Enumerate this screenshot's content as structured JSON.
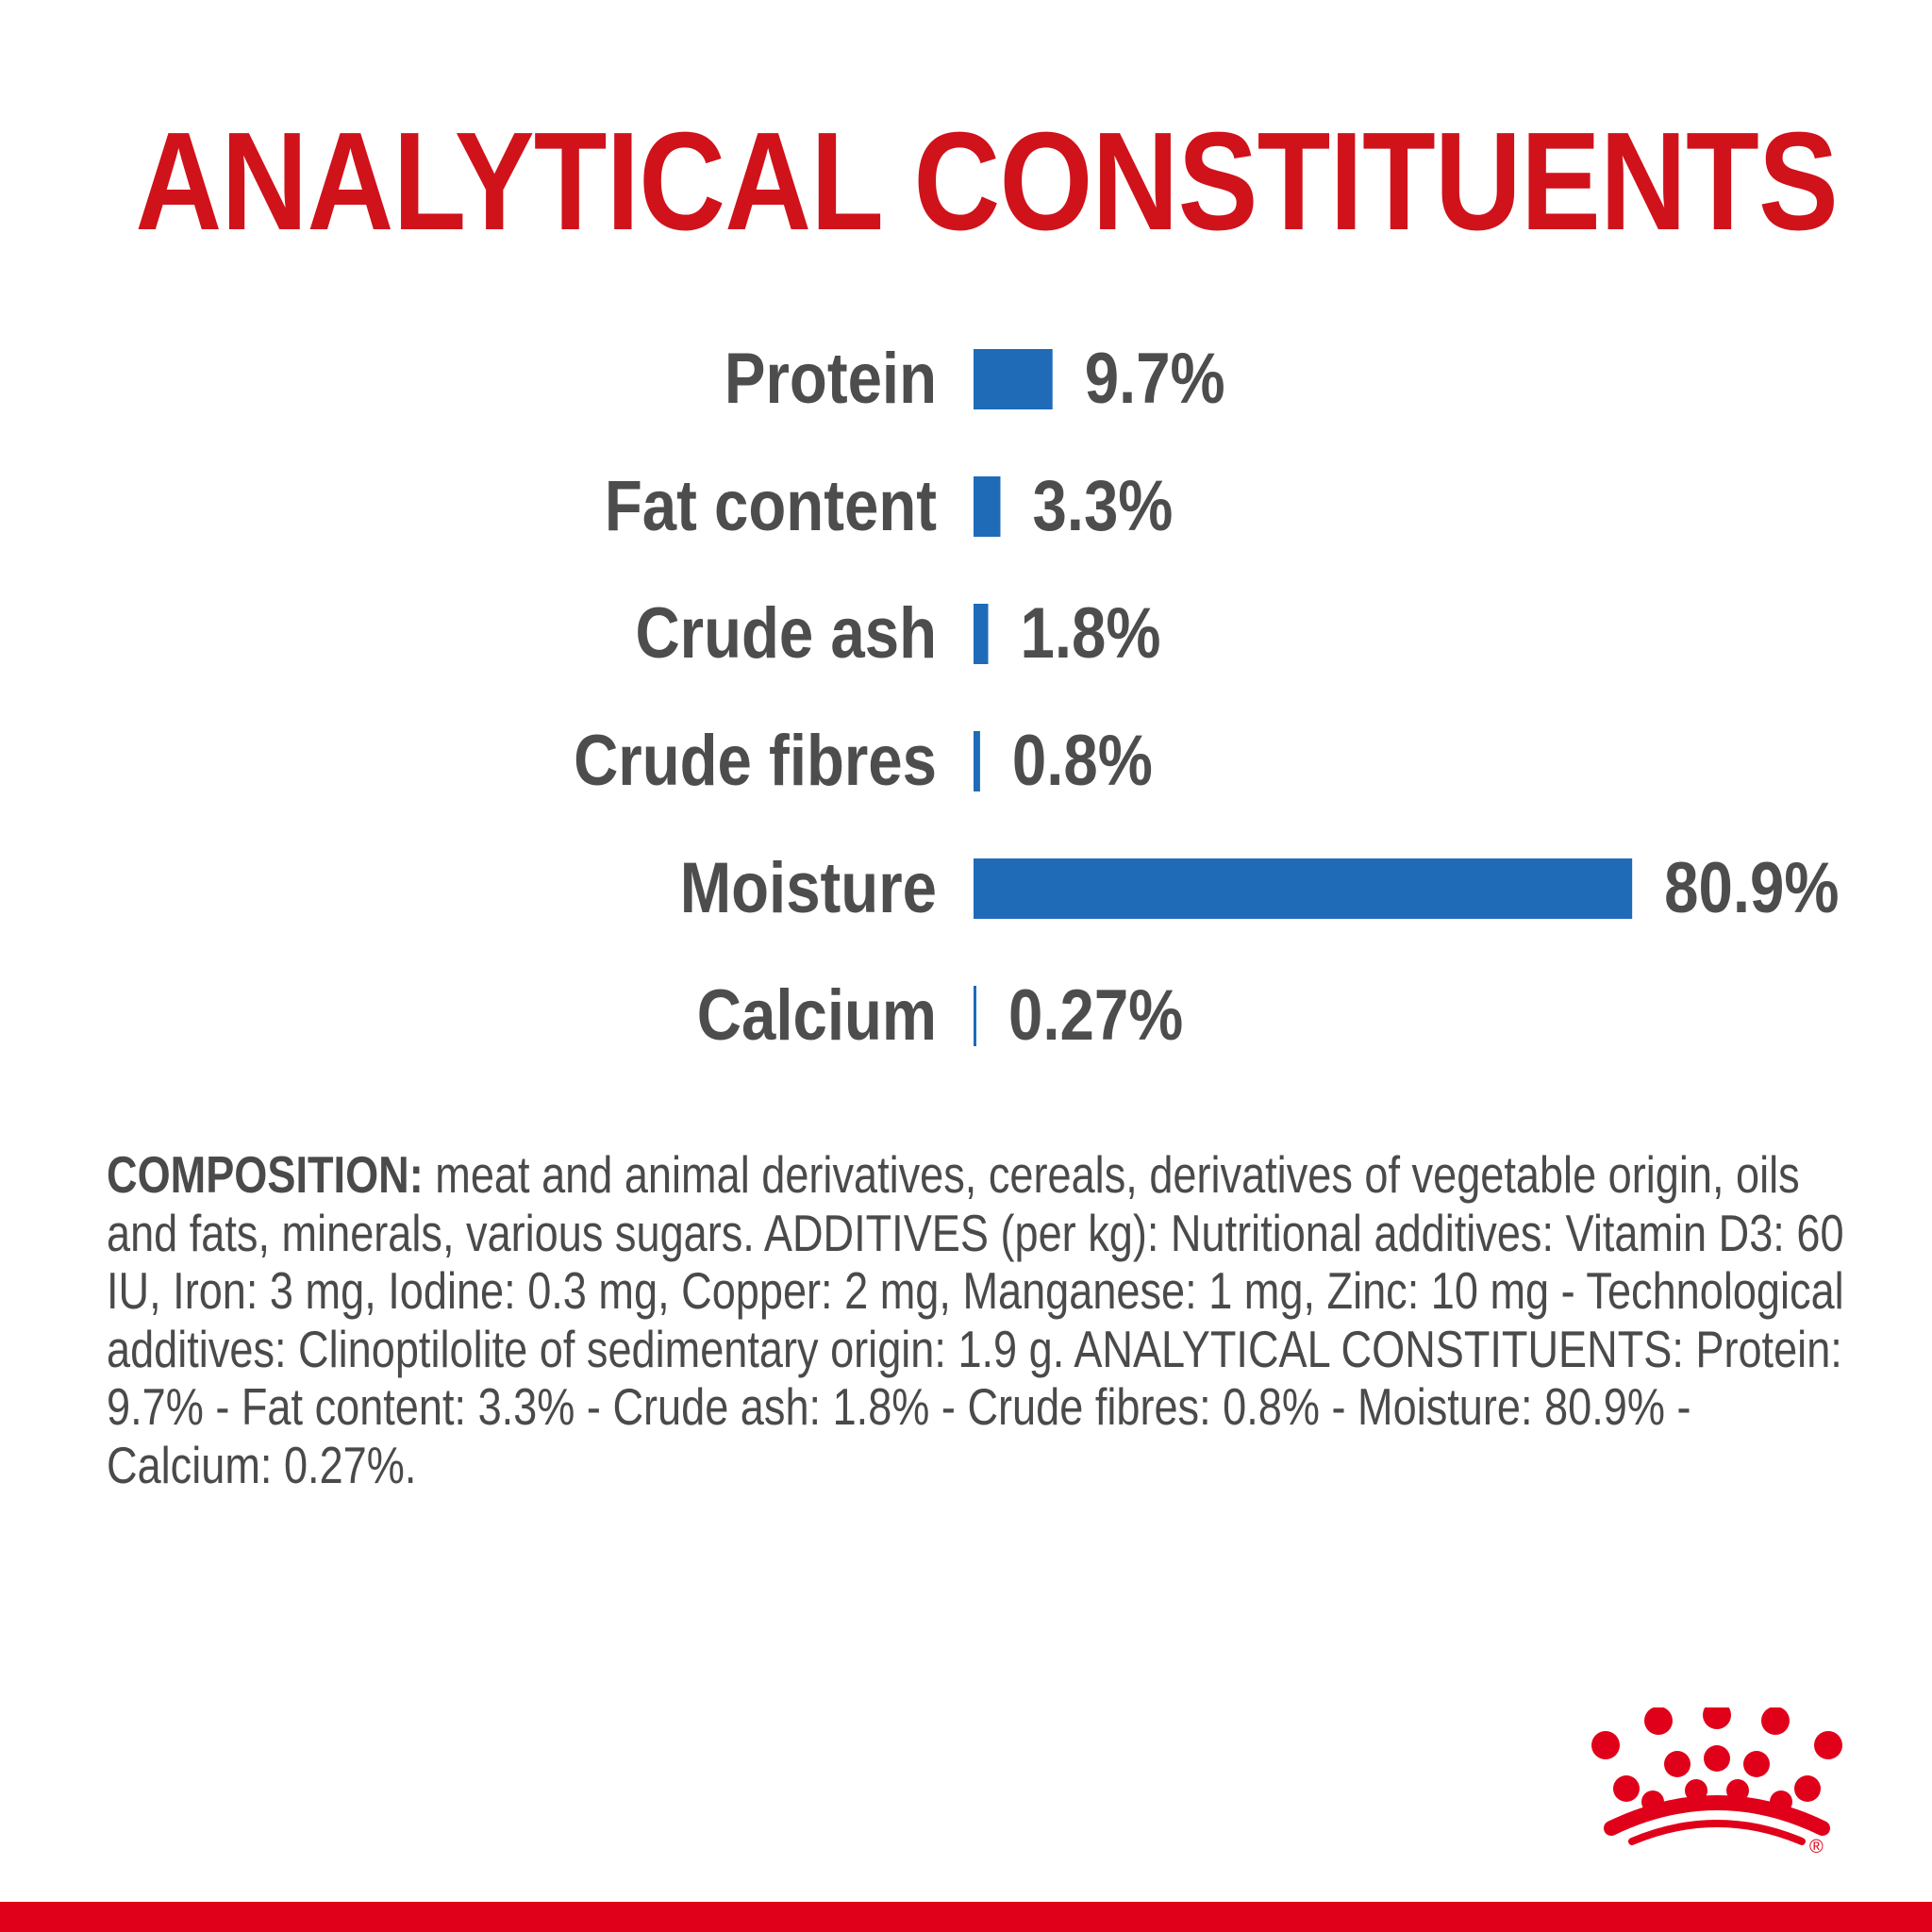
{
  "colors": {
    "title": "#d0121b",
    "bar": "#1f6bb8",
    "label_text": "#4d4d4d",
    "body_text": "#4a4a4a",
    "brand_red": "#e1001a"
  },
  "chart_data": {
    "type": "bar",
    "orientation": "horizontal",
    "title": "ANALYTICAL CONSTITUENTS",
    "unit": "%",
    "categories": [
      "Protein",
      "Fat content",
      "Crude ash",
      "Crude fibres",
      "Moisture",
      "Calcium"
    ],
    "values": [
      9.7,
      3.3,
      1.8,
      0.8,
      80.9,
      0.27
    ],
    "value_labels": [
      "9.7%",
      "3.3%",
      "1.8%",
      "0.8%",
      "80.9%",
      "0.27%"
    ],
    "grid": false,
    "legend": "none"
  },
  "composition": {
    "lead": "COMPOSITION:",
    "text": " meat and animal derivatives, cereals, derivatives of vegetable origin, oils and fats, minerals, various sugars. ADDITIVES (per kg): Nutritional additives: Vitamin D3: 60 IU, Iron: 3 mg, Iodine: 0.3 mg, Copper: 2 mg, Manganese: 1 mg, Zinc: 10 mg - Technological additives: Clinoptilolite of sedimentary origin: 1.9 g. ANALYTICAL CONSTITUENTS: Protein: 9.7% - Fat content: 3.3% - Crude ash: 1.8% - Crude fibres: 0.8% - Moisture: 80.9% - Calcium: 0.27%."
  },
  "logo": {
    "name": "crown-logo-icon",
    "mark": "®"
  }
}
